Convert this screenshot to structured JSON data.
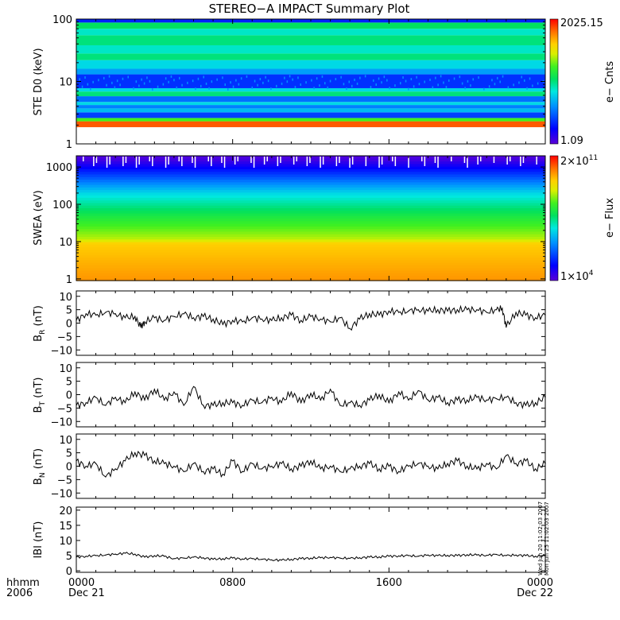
{
  "title": "STEREO−A IMPACT Summary Plot",
  "colors": {
    "line": "#000000",
    "axis": "#000000"
  },
  "chart_data": [
    {
      "type": "heatmap",
      "ylabel": "STE D0 (keV)",
      "yscale": "log",
      "ylim": [
        1,
        100
      ],
      "yticks": [
        "1",
        "10",
        "100"
      ],
      "colorbar": {
        "label": "e− Cnts",
        "max": "2025.15",
        "min": "1.09"
      },
      "bands": [
        {
          "from": 1.85,
          "to": 2.3,
          "level": 0.92
        },
        {
          "from": 2.3,
          "to": 2.6,
          "level": 0.62
        },
        {
          "from": 2.6,
          "to": 3.2,
          "level": 0.2
        },
        {
          "from": 3.2,
          "to": 3.7,
          "level": 0.36
        },
        {
          "from": 3.7,
          "to": 4.2,
          "level": 0.28
        },
        {
          "from": 4.2,
          "to": 4.7,
          "level": 0.4
        },
        {
          "from": 4.7,
          "to": 5.8,
          "level": 0.26
        },
        {
          "from": 5.8,
          "to": 6.9,
          "level": 0.5
        },
        {
          "from": 6.9,
          "to": 7.8,
          "level": 0.4
        },
        {
          "from": 7.8,
          "to": 13,
          "level": 0.18
        },
        {
          "from": 13,
          "to": 16,
          "level": 0.32
        },
        {
          "from": 16,
          "to": 22,
          "level": 0.4
        },
        {
          "from": 22,
          "to": 28,
          "level": 0.5
        },
        {
          "from": 28,
          "to": 38,
          "level": 0.44
        },
        {
          "from": 38,
          "to": 55,
          "level": 0.5
        },
        {
          "from": 55,
          "to": 70,
          "level": 0.44
        },
        {
          "from": 70,
          "to": 88,
          "level": 0.52
        },
        {
          "from": 88,
          "to": 100,
          "level": 0.16
        }
      ]
    },
    {
      "type": "heatmap",
      "ylabel": "SWEA (eV)",
      "yscale": "log",
      "ylim": [
        0.9,
        2000
      ],
      "yticks": [
        "1",
        "10",
        "100",
        "1000"
      ],
      "colorbar": {
        "label": "e− Flux",
        "max": "2×10",
        "max_exp": "11",
        "min": "1×10",
        "min_exp": "4"
      },
      "profile": [
        {
          "e": 1,
          "level": 0.86
        },
        {
          "e": 9,
          "level": 0.8
        },
        {
          "e": 12,
          "level": 0.7
        },
        {
          "e": 50,
          "level": 0.56
        },
        {
          "e": 200,
          "level": 0.4
        },
        {
          "e": 700,
          "level": 0.18
        },
        {
          "e": 1700,
          "level": 0.02
        }
      ]
    },
    {
      "type": "line",
      "ylabel": "B",
      "ylabel_sub": "R",
      "yunit": "(nT)",
      "ylim": [
        -12,
        12
      ],
      "yticks": [
        "−10",
        "−5",
        "0",
        "5",
        "10"
      ],
      "xlim": [
        0,
        24
      ],
      "x": [
        0,
        0.5,
        1,
        1.5,
        2,
        2.5,
        3,
        3.3,
        3.5,
        4,
        4.5,
        5,
        5.5,
        6,
        6.5,
        7,
        7.5,
        8,
        8.5,
        9,
        9.5,
        10,
        10.5,
        11,
        11.5,
        12,
        12.5,
        13,
        13.5,
        14,
        14.5,
        15,
        15.5,
        16,
        16.5,
        17,
        17.5,
        18,
        18.5,
        19,
        19.5,
        20,
        20.5,
        21,
        21.5,
        21.8,
        22,
        22.5,
        23,
        23.5,
        24
      ],
      "values": [
        1,
        3.5,
        3,
        4,
        3.5,
        2,
        2.5,
        -1.5,
        0.5,
        2,
        1,
        2.5,
        3.5,
        2,
        2.5,
        1.5,
        -0.5,
        1,
        0.5,
        2,
        1.5,
        1,
        2,
        3,
        1,
        2.5,
        1.5,
        0.5,
        2,
        -2,
        1.5,
        3.5,
        3,
        4.5,
        4,
        4.5,
        5,
        4.5,
        5,
        4.5,
        5,
        5,
        5,
        4,
        5,
        5.5,
        -1.5,
        4,
        3,
        2,
        3
      ]
    },
    {
      "type": "line",
      "ylabel": "B",
      "ylabel_sub": "T",
      "yunit": "(nT)",
      "ylim": [
        -12,
        12
      ],
      "yticks": [
        "−10",
        "−5",
        "0",
        "5",
        "10"
      ],
      "xlim": [
        0,
        24
      ],
      "x": [
        0,
        0.5,
        1,
        1.5,
        2,
        2.5,
        3,
        3.5,
        4,
        4.5,
        5,
        5.5,
        6,
        6.5,
        7,
        7.5,
        8,
        8.5,
        9,
        9.5,
        10,
        10.5,
        11,
        11.5,
        12,
        12.5,
        13,
        13.5,
        14,
        14.5,
        15,
        15.5,
        16,
        16.5,
        17,
        17.5,
        18,
        18.5,
        19,
        19.5,
        20,
        20.5,
        21,
        21.5,
        22,
        22.5,
        23,
        23.5,
        24
      ],
      "values": [
        -4,
        -3,
        -1,
        -4,
        -1,
        -3,
        1,
        -2,
        2,
        -2,
        1,
        -4,
        3,
        -4,
        -4,
        -3,
        -3,
        -4,
        -2,
        -3,
        -1,
        -3,
        1,
        -3,
        0.5,
        -2,
        2,
        -4,
        -3,
        -4,
        -2,
        0,
        -3,
        1,
        -2,
        1.5,
        -2,
        -1,
        -3,
        -2,
        -2,
        -1,
        -2,
        -1.5,
        -1,
        -3,
        -4,
        -3,
        -1
      ]
    },
    {
      "type": "line",
      "ylabel": "B",
      "ylabel_sub": "N",
      "yunit": "(nT)",
      "ylim": [
        -12,
        12
      ],
      "yticks": [
        "−10",
        "−5",
        "0",
        "5",
        "10"
      ],
      "xlim": [
        0,
        24
      ],
      "x": [
        0,
        0.5,
        1,
        1.5,
        2,
        2.5,
        3,
        3.5,
        4,
        4.5,
        5,
        5.5,
        6,
        6.5,
        7,
        7.5,
        8,
        8.5,
        9,
        9.5,
        10,
        10.5,
        11,
        11.5,
        12,
        12.5,
        13,
        13.5,
        14,
        14.5,
        15,
        15.5,
        16,
        16.5,
        17,
        17.5,
        18,
        18.5,
        19,
        19.5,
        20,
        20.5,
        21,
        21.5,
        22,
        22.5,
        23,
        23.5,
        24
      ],
      "values": [
        2,
        0,
        1,
        -4,
        -1,
        2,
        5,
        4,
        2,
        1,
        0,
        -2,
        1,
        -2,
        -1,
        -3,
        2,
        -2,
        1,
        -1,
        0,
        1,
        -1,
        0,
        2,
        -1,
        0,
        -2,
        -1,
        0,
        1,
        -1,
        0,
        -2,
        0,
        1,
        0,
        -1,
        1,
        2,
        0,
        -1,
        1,
        -1,
        4,
        1,
        2,
        -1,
        1
      ]
    },
    {
      "type": "line",
      "ylabel": "lBl",
      "yunit": "(nT)",
      "ylim": [
        -0.5,
        21
      ],
      "yticks": [
        "0",
        "5",
        "10",
        "15",
        "20"
      ],
      "xlim": [
        0,
        24
      ],
      "x": [
        0,
        0.5,
        1,
        1.5,
        2,
        2.5,
        3,
        3.5,
        4,
        4.5,
        5,
        5.5,
        6,
        6.5,
        7,
        7.5,
        8,
        8.5,
        9,
        9.5,
        10,
        10.5,
        11,
        11.5,
        12,
        12.5,
        13,
        13.5,
        14,
        14.5,
        15,
        15.5,
        16,
        16.5,
        17,
        17.5,
        18,
        18.5,
        19,
        19.5,
        20,
        20.5,
        21,
        21.5,
        22,
        22.5,
        23,
        23.5,
        24
      ],
      "values": [
        4.5,
        4.8,
        5,
        5.2,
        5.5,
        5.8,
        5.5,
        4.5,
        5,
        4.8,
        4,
        4.2,
        4.5,
        4.3,
        3.8,
        4,
        4.2,
        3.9,
        4,
        3.8,
        3.6,
        3.5,
        3.8,
        4,
        4.2,
        4.3,
        4.4,
        4.2,
        4.1,
        4.3,
        4.5,
        4.6,
        4.8,
        4.9,
        5,
        4.8,
        5.2,
        5,
        5.1,
        5,
        5.3,
        5.2,
        5.1,
        5.4,
        5,
        5.2,
        5,
        4.8,
        5
      ]
    }
  ],
  "x_axis": {
    "row1_label": "hhmm",
    "row2_label": "2006",
    "ticks": [
      {
        "x": 0,
        "time": "0000",
        "date": "Dec 21"
      },
      {
        "x": 8,
        "time": "0800",
        "date": ""
      },
      {
        "x": 16,
        "time": "1600",
        "date": ""
      },
      {
        "x": 24,
        "time": "0000",
        "date": "Dec 22"
      }
    ]
  },
  "stamp": {
    "line1": "Wed Jun 20 11:02:03 2007",
    "line2": "Mon Jun 25 11:02:03 2007"
  }
}
